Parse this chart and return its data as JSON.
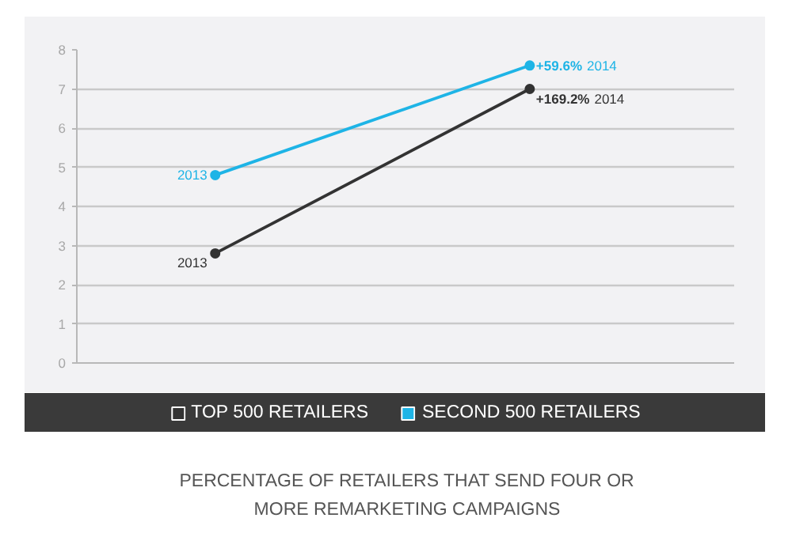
{
  "chart_data": {
    "type": "line",
    "title": "PERCENTAGE OF RETAILERS THAT SEND FOUR OR MORE REMARKETING CAMPAIGNS",
    "categories": [
      "2013",
      "2014"
    ],
    "series": [
      {
        "name": "TOP 500 RETAILERS",
        "color": "#333333",
        "values": [
          2.8,
          7.0
        ]
      },
      {
        "name": "SECOND 500 RETAILERS",
        "color": "#1eb4e6",
        "values": [
          4.8,
          7.6
        ]
      }
    ],
    "ylim": [
      0,
      8
    ],
    "yticks": [
      0,
      1,
      2,
      3,
      4,
      5,
      6,
      7,
      8
    ],
    "annotations": [
      "+169.2%",
      "+59.6%"
    ],
    "grid": "y",
    "legend": "bottom",
    "tick_labels": "y",
    "marker": "circle",
    "line_style": "solid"
  }
}
